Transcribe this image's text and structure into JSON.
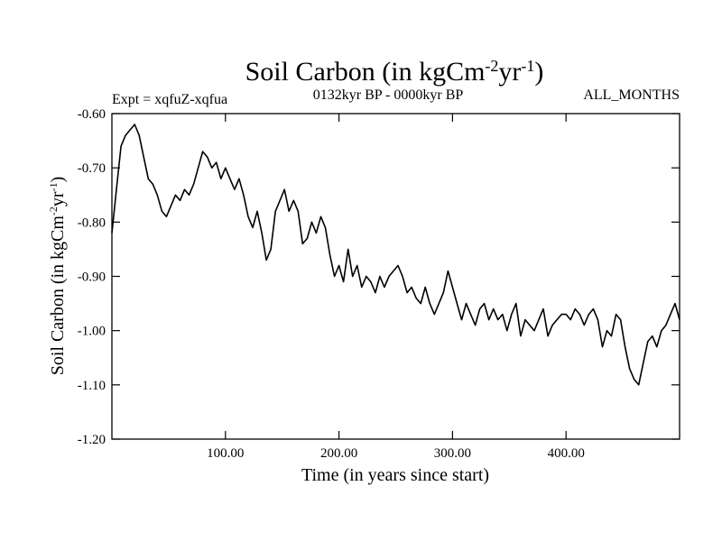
{
  "chart_data": {
    "type": "line",
    "title": "Soil Carbon (in kgCm",
    "title_sup1": "-2",
    "title_mid": "yr",
    "title_sup2": "-1",
    "title_end": ")",
    "expt_label": "Expt = xqfuZ-xqfua",
    "period_label": "0132kyr BP - 0000kyr BP",
    "season_label": "ALL_MONTHS",
    "xlabel": "Time (in years since start)",
    "ylabel": "Soil Carbon (in kgCm",
    "ylabel_sup1": "-2",
    "ylabel_mid": "yr",
    "ylabel_sup2": "-1",
    "ylabel_end": ")",
    "xlim": [
      0,
      500
    ],
    "ylim": [
      -1.2,
      -0.6
    ],
    "xticks": [
      100,
      200,
      300,
      400
    ],
    "xtick_labels": [
      "100.00",
      "200.00",
      "300.00",
      "400.00"
    ],
    "yticks": [
      -0.6,
      -0.7,
      -0.8,
      -0.9,
      -1.0,
      -1.1,
      -1.2
    ],
    "ytick_labels": [
      "-0.60",
      "-0.70",
      "-0.80",
      "-0.90",
      "-1.00",
      "-1.10",
      "-1.20"
    ],
    "grid": false,
    "series": [
      {
        "name": "soil carbon",
        "color": "#000000",
        "x": [
          0,
          4,
          8,
          12,
          16,
          20,
          24,
          28,
          32,
          36,
          40,
          44,
          48,
          52,
          56,
          60,
          64,
          68,
          72,
          76,
          80,
          84,
          88,
          92,
          96,
          100,
          104,
          108,
          112,
          116,
          120,
          124,
          128,
          132,
          136,
          140,
          144,
          148,
          152,
          156,
          160,
          164,
          168,
          172,
          176,
          180,
          184,
          188,
          192,
          196,
          200,
          204,
          208,
          212,
          216,
          220,
          224,
          228,
          232,
          236,
          240,
          244,
          248,
          252,
          256,
          260,
          264,
          268,
          272,
          276,
          280,
          284,
          288,
          292,
          296,
          300,
          304,
          308,
          312,
          316,
          320,
          324,
          328,
          332,
          336,
          340,
          344,
          348,
          352,
          356,
          360,
          364,
          368,
          372,
          376,
          380,
          384,
          388,
          392,
          396,
          400,
          404,
          408,
          412,
          416,
          420,
          424,
          428,
          432,
          436,
          440,
          444,
          448,
          452,
          456,
          460,
          464,
          468,
          472,
          476,
          480,
          484,
          488,
          492,
          496,
          500
        ],
        "values": [
          -0.82,
          -0.74,
          -0.66,
          -0.64,
          -0.63,
          -0.62,
          -0.64,
          -0.68,
          -0.72,
          -0.73,
          -0.75,
          -0.78,
          -0.79,
          -0.77,
          -0.75,
          -0.76,
          -0.74,
          -0.75,
          -0.73,
          -0.7,
          -0.67,
          -0.68,
          -0.7,
          -0.69,
          -0.72,
          -0.7,
          -0.72,
          -0.74,
          -0.72,
          -0.75,
          -0.79,
          -0.81,
          -0.78,
          -0.82,
          -0.87,
          -0.85,
          -0.78,
          -0.76,
          -0.74,
          -0.78,
          -0.76,
          -0.78,
          -0.84,
          -0.83,
          -0.8,
          -0.82,
          -0.79,
          -0.81,
          -0.86,
          -0.9,
          -0.88,
          -0.91,
          -0.85,
          -0.9,
          -0.88,
          -0.92,
          -0.9,
          -0.91,
          -0.93,
          -0.9,
          -0.92,
          -0.9,
          -0.89,
          -0.88,
          -0.9,
          -0.93,
          -0.92,
          -0.94,
          -0.95,
          -0.92,
          -0.95,
          -0.97,
          -0.95,
          -0.93,
          -0.89,
          -0.92,
          -0.95,
          -0.98,
          -0.95,
          -0.97,
          -0.99,
          -0.96,
          -0.95,
          -0.98,
          -0.96,
          -0.98,
          -0.97,
          -1.0,
          -0.97,
          -0.95,
          -1.01,
          -0.98,
          -0.99,
          -1.0,
          -0.98,
          -0.96,
          -1.01,
          -0.99,
          -0.98,
          -0.97,
          -0.97,
          -0.98,
          -0.96,
          -0.97,
          -0.99,
          -0.97,
          -0.96,
          -0.98,
          -1.03,
          -1.0,
          -1.01,
          -0.97,
          -0.98,
          -1.03,
          -1.07,
          -1.09,
          -1.1,
          -1.06,
          -1.02,
          -1.01,
          -1.03,
          -1.0,
          -0.99,
          -0.97,
          -0.95,
          -0.98
        ]
      }
    ]
  }
}
